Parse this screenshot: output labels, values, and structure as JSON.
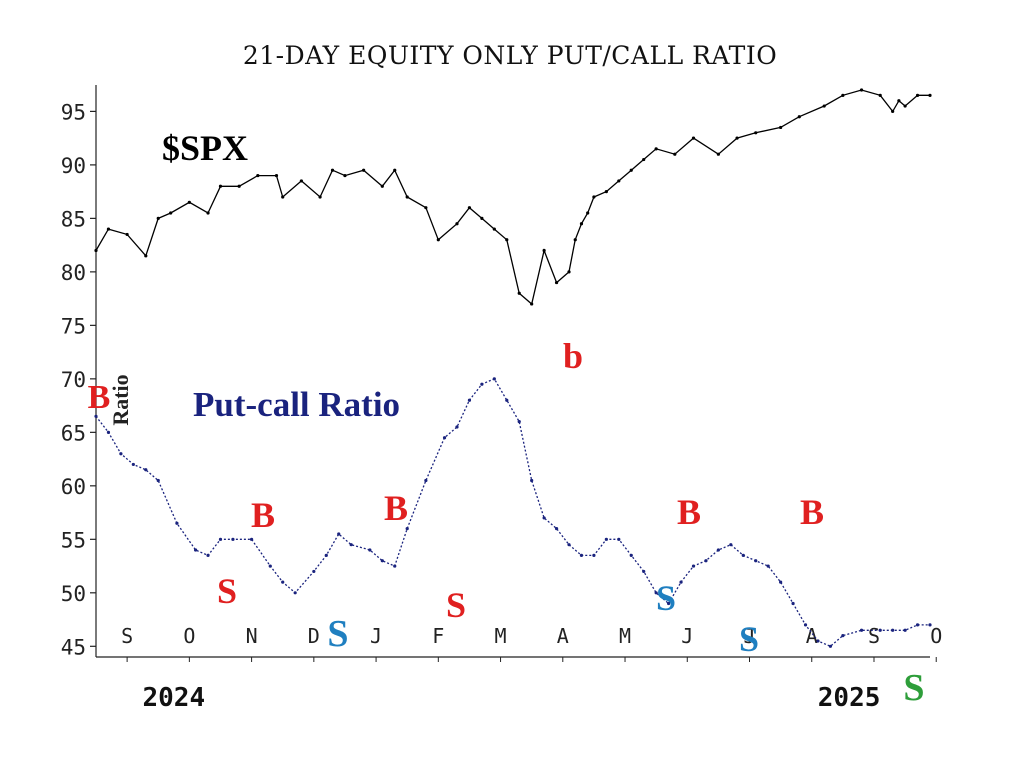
{
  "chart_data": {
    "type": "line",
    "title": "21-DAY EQUITY ONLY PUT/CALL RATIO",
    "ylabel": "Ratio",
    "ylim": [
      44,
      97
    ],
    "yticks": [
      45,
      50,
      55,
      60,
      65,
      70,
      75,
      80,
      85,
      90,
      95
    ],
    "months": [
      "S",
      "O",
      "N",
      "D",
      "J",
      "F",
      "M",
      "A",
      "M",
      "J",
      "J",
      "A",
      "S",
      "O"
    ],
    "years": [
      "2024",
      "2025"
    ],
    "series": [
      {
        "name": "$SPX",
        "color": "#000000",
        "x": [
          0,
          0.2,
          0.5,
          0.8,
          1.0,
          1.2,
          1.5,
          1.8,
          2.0,
          2.3,
          2.6,
          2.9,
          3.0,
          3.3,
          3.6,
          3.8,
          4.0,
          4.3,
          4.6,
          4.8,
          5.0,
          5.3,
          5.5,
          5.8,
          6.0,
          6.2,
          6.4,
          6.6,
          6.8,
          7.0,
          7.2,
          7.4,
          7.6,
          7.7,
          7.8,
          7.9,
          8.0,
          8.2,
          8.4,
          8.6,
          8.8,
          9.0,
          9.3,
          9.6,
          10.0,
          10.3,
          10.6,
          11.0,
          11.3,
          11.7,
          12.0,
          12.3,
          12.6,
          12.8,
          12.9,
          13.0,
          13.2,
          13.4
        ],
        "values": [
          82,
          84,
          83.5,
          81.5,
          85,
          85.5,
          86.5,
          85.5,
          88,
          88,
          89,
          89,
          87,
          88.5,
          87,
          89.5,
          89,
          89.5,
          88,
          89.5,
          87,
          86,
          83,
          84.5,
          86,
          85,
          84,
          83,
          78,
          77,
          82,
          79,
          80,
          83,
          84.5,
          85.5,
          87,
          87.5,
          88.5,
          89.5,
          90.5,
          91.5,
          91,
          92.5,
          91,
          92.5,
          93,
          93.5,
          94.5,
          95.5,
          96.5,
          97,
          96.5,
          95,
          96,
          95.5,
          96.5,
          96.5
        ]
      },
      {
        "name": "Put-call Ratio",
        "color": "#1a237e",
        "x": [
          0,
          0.2,
          0.4,
          0.6,
          0.8,
          1.0,
          1.3,
          1.6,
          1.8,
          2.0,
          2.2,
          2.5,
          2.8,
          3.0,
          3.2,
          3.5,
          3.7,
          3.9,
          4.1,
          4.4,
          4.6,
          4.8,
          5.0,
          5.3,
          5.6,
          5.8,
          6.0,
          6.2,
          6.4,
          6.6,
          6.8,
          7.0,
          7.2,
          7.4,
          7.6,
          7.8,
          8.0,
          8.2,
          8.4,
          8.6,
          8.8,
          9.0,
          9.2,
          9.4,
          9.6,
          9.8,
          10.0,
          10.2,
          10.4,
          10.6,
          10.8,
          11.0,
          11.2,
          11.4,
          11.6,
          11.8,
          12.0,
          12.3,
          12.6,
          12.8,
          13.0,
          13.2,
          13.4
        ],
        "values": [
          66.5,
          65,
          63,
          62,
          61.5,
          60.5,
          56.5,
          54,
          53.5,
          55,
          55,
          55,
          52.5,
          51,
          50,
          52,
          53.5,
          55.5,
          54.5,
          54,
          53,
          52.5,
          56,
          60.5,
          64.5,
          65.5,
          68,
          69.5,
          70,
          68,
          66,
          60.5,
          57,
          56,
          54.5,
          53.5,
          53.5,
          55,
          55,
          53.5,
          52,
          50,
          49,
          51,
          52.5,
          53,
          54,
          54.5,
          53.5,
          53,
          52.5,
          51,
          49,
          47,
          45.5,
          45,
          46,
          46.5,
          46.5,
          46.5,
          46.5,
          47,
          47
        ]
      }
    ],
    "annotations": [
      {
        "text": "$SPX",
        "color": "#000000"
      },
      {
        "text": "Put-call Ratio",
        "color": "#1a237e"
      },
      {
        "text": "B",
        "color": "#e02020"
      },
      {
        "text": "S",
        "color": "#e02020"
      },
      {
        "text": "B",
        "color": "#e02020"
      },
      {
        "text": "S",
        "color": "#1f7fc0"
      },
      {
        "text": "B",
        "color": "#e02020"
      },
      {
        "text": "S",
        "color": "#e02020"
      },
      {
        "text": "b",
        "color": "#e02020"
      },
      {
        "text": "S",
        "color": "#1f7fc0"
      },
      {
        "text": "B",
        "color": "#e02020"
      },
      {
        "text": "S",
        "color": "#1f7fc0"
      },
      {
        "text": "B",
        "color": "#e02020"
      },
      {
        "text": "S",
        "color": "#2e9e3a"
      }
    ]
  }
}
